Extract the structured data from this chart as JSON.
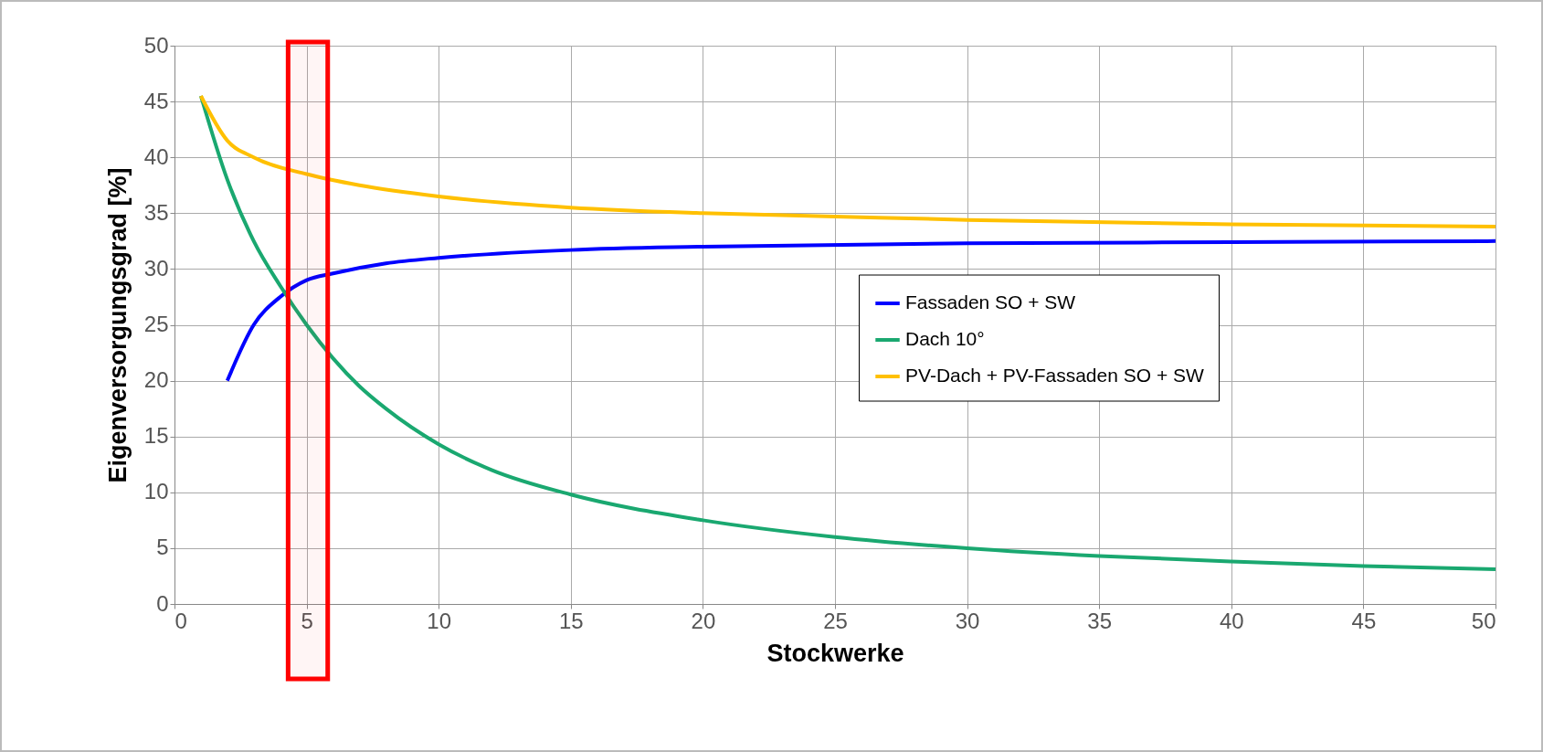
{
  "chart_data": {
    "type": "line",
    "xlabel": "Stockwerke",
    "ylabel": "Eigenversorgungsgrad [%]",
    "xlim": [
      0,
      50
    ],
    "xticks": [
      0,
      5,
      10,
      15,
      20,
      25,
      30,
      35,
      40,
      45,
      50
    ],
    "ylim": [
      0,
      50
    ],
    "yticks": [
      0,
      5,
      10,
      15,
      20,
      25,
      30,
      35,
      40,
      45,
      50
    ],
    "grid": true,
    "legend": "right",
    "line_style": "solid",
    "marker": "none",
    "series": [
      {
        "name": "Fassaden SO + SW",
        "color": "#0000ff",
        "x": [
          2,
          3,
          4,
          5,
          6,
          8,
          10,
          15,
          20,
          30,
          40,
          50
        ],
        "values": [
          20,
          25,
          27.5,
          29,
          29.6,
          30.5,
          31,
          31.7,
          32,
          32.3,
          32.4,
          32.5
        ]
      },
      {
        "name": "Dach 10°",
        "color": "#1aa870",
        "x": [
          1,
          2,
          3,
          4,
          5,
          6,
          7,
          8,
          10,
          12,
          15,
          20,
          25,
          30,
          35,
          40,
          45,
          50
        ],
        "values": [
          45.5,
          38,
          32.5,
          28.5,
          25,
          22,
          19.5,
          17.5,
          14.3,
          12,
          9.8,
          7.5,
          6,
          5,
          4.3,
          3.8,
          3.4,
          3.1
        ]
      },
      {
        "name": "PV-Dach + PV-Fassaden SO + SW",
        "color": "#ffc000",
        "x": [
          1,
          2,
          3,
          5,
          7,
          10,
          15,
          20,
          25,
          30,
          40,
          50
        ],
        "values": [
          45.5,
          41.5,
          40,
          38.5,
          37.5,
          36.5,
          35.5,
          35,
          34.7,
          34.4,
          34,
          33.8
        ]
      }
    ],
    "bands": [
      {
        "axis": "x",
        "from": 4.3,
        "to": 5.8,
        "color": "#ff0000"
      }
    ]
  }
}
